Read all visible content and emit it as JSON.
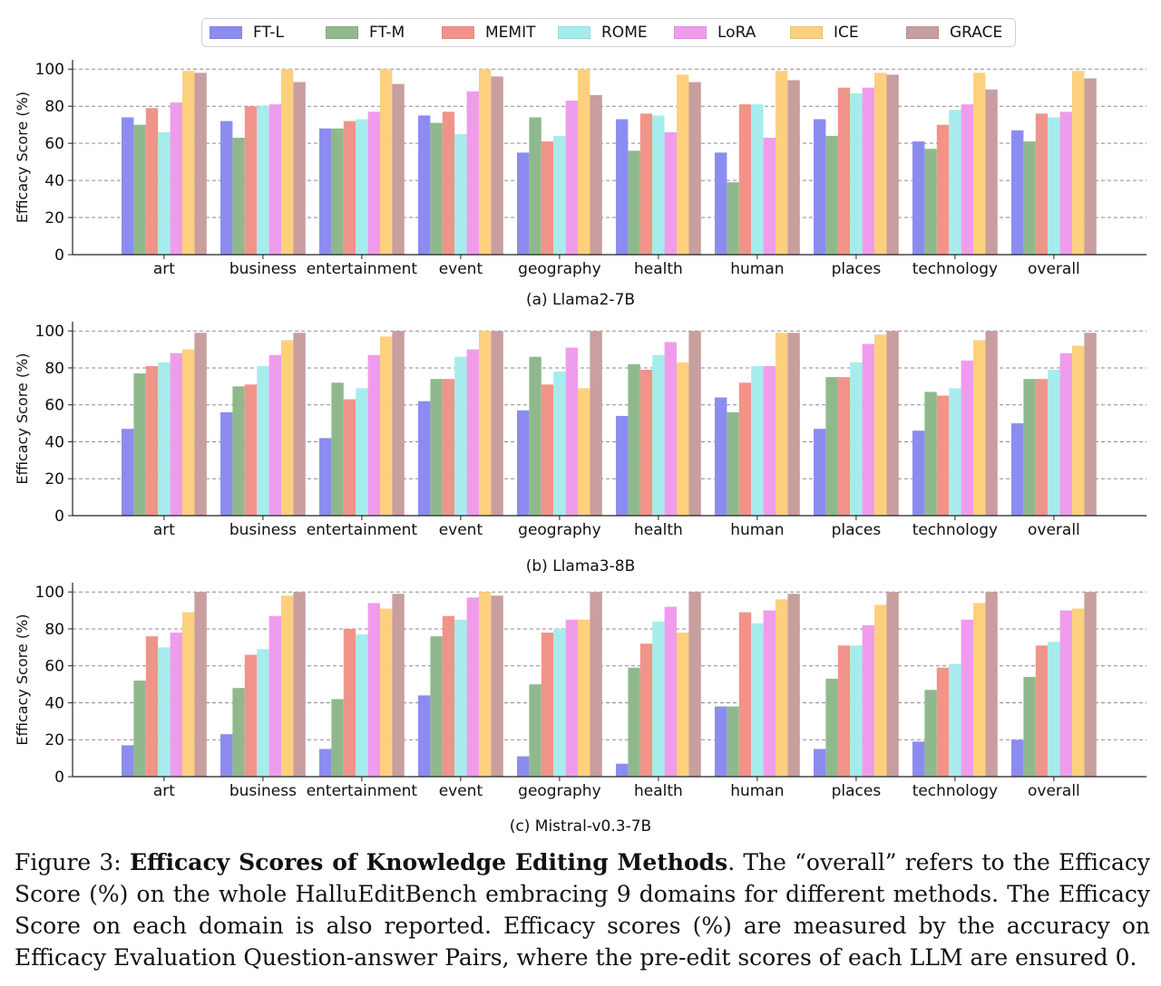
{
  "legend": [
    "FT-L",
    "FT-M",
    "MEMIT",
    "ROME",
    "LoRA",
    "ICE",
    "GRACE"
  ],
  "colors": [
    "#8c8cf0",
    "#8fb98c",
    "#f0948a",
    "#a6ecec",
    "#f09cec",
    "#fdd07e",
    "#c89e9e"
  ],
  "figure_caption": {
    "label": "Figure 3:",
    "title": "Efficacy Scores of Knowledge Editing Methods",
    "body": ". The “overall” refers to the Efficacy Score (%) on the whole HalluEditBench embracing 9 domains for different methods. The Efficacy Score on each domain is also reported. Efficacy scores (%) are measured by the accuracy on Efficacy Evaluation Question-answer Pairs, where the pre-edit scores of each LLM are ensured 0."
  },
  "chart_data": [
    {
      "type": "bar",
      "title": "(a) Llama2-7B",
      "xlabel": "",
      "ylabel": "Efficacy Score (%)",
      "ylim": [
        0,
        105
      ],
      "yticks": [
        0,
        20,
        40,
        60,
        80,
        100
      ],
      "grid": true,
      "categories": [
        "art",
        "business",
        "entertainment",
        "event",
        "geography",
        "health",
        "human",
        "places",
        "technology",
        "overall"
      ],
      "series": [
        {
          "name": "FT-L",
          "values": [
            74,
            72,
            68,
            75,
            55,
            73,
            55,
            73,
            61,
            67
          ]
        },
        {
          "name": "FT-M",
          "values": [
            70,
            63,
            68,
            71,
            74,
            56,
            39,
            64,
            57,
            61
          ]
        },
        {
          "name": "MEMIT",
          "values": [
            79,
            80,
            72,
            77,
            61,
            76,
            81,
            90,
            70,
            76
          ]
        },
        {
          "name": "ROME",
          "values": [
            66,
            80,
            73,
            65,
            64,
            75,
            81,
            87,
            78,
            74
          ]
        },
        {
          "name": "LoRA",
          "values": [
            82,
            81,
            77,
            88,
            83,
            66,
            63,
            90,
            81,
            77
          ]
        },
        {
          "name": "ICE",
          "values": [
            99,
            100,
            100,
            100,
            100,
            97,
            99,
            98,
            98,
            99
          ]
        },
        {
          "name": "GRACE",
          "values": [
            98,
            93,
            92,
            96,
            86,
            93,
            94,
            97,
            89,
            95
          ]
        }
      ]
    },
    {
      "type": "bar",
      "title": "(b) Llama3-8B",
      "xlabel": "",
      "ylabel": "Efficacy Score (%)",
      "ylim": [
        0,
        105
      ],
      "yticks": [
        0,
        20,
        40,
        60,
        80,
        100
      ],
      "grid": true,
      "categories": [
        "art",
        "business",
        "entertainment",
        "event",
        "geography",
        "health",
        "human",
        "places",
        "technology",
        "overall"
      ],
      "series": [
        {
          "name": "FT-L",
          "values": [
            47,
            56,
            42,
            62,
            57,
            54,
            64,
            47,
            46,
            50
          ]
        },
        {
          "name": "FT-M",
          "values": [
            77,
            70,
            72,
            74,
            86,
            82,
            56,
            75,
            67,
            74
          ]
        },
        {
          "name": "MEMIT",
          "values": [
            81,
            71,
            63,
            74,
            71,
            79,
            72,
            75,
            65,
            74
          ]
        },
        {
          "name": "ROME",
          "values": [
            83,
            81,
            69,
            86,
            78,
            87,
            81,
            83,
            69,
            79
          ]
        },
        {
          "name": "LoRA",
          "values": [
            88,
            87,
            87,
            90,
            91,
            94,
            81,
            93,
            84,
            88
          ]
        },
        {
          "name": "ICE",
          "values": [
            90,
            95,
            97,
            100,
            69,
            83,
            99,
            98,
            95,
            92
          ]
        },
        {
          "name": "GRACE",
          "values": [
            99,
            99,
            100,
            100,
            100,
            100,
            99,
            100,
            100,
            99
          ]
        }
      ]
    },
    {
      "type": "bar",
      "title": "(c) Mistral-v0.3-7B",
      "xlabel": "",
      "ylabel": "Efficacy Score (%)",
      "ylim": [
        0,
        105
      ],
      "yticks": [
        0,
        20,
        40,
        60,
        80,
        100
      ],
      "grid": true,
      "categories": [
        "art",
        "business",
        "entertainment",
        "event",
        "geography",
        "health",
        "human",
        "places",
        "technology",
        "overall"
      ],
      "series": [
        {
          "name": "FT-L",
          "values": [
            17,
            23,
            15,
            44,
            11,
            7,
            38,
            15,
            19,
            20
          ]
        },
        {
          "name": "FT-M",
          "values": [
            52,
            48,
            42,
            76,
            50,
            59,
            38,
            53,
            47,
            54
          ]
        },
        {
          "name": "MEMIT",
          "values": [
            76,
            66,
            80,
            87,
            78,
            72,
            89,
            71,
            59,
            71
          ]
        },
        {
          "name": "ROME",
          "values": [
            70,
            69,
            77,
            85,
            80,
            84,
            83,
            71,
            61,
            73
          ]
        },
        {
          "name": "LoRA",
          "values": [
            78,
            87,
            94,
            97,
            85,
            92,
            90,
            82,
            85,
            90
          ]
        },
        {
          "name": "ICE",
          "values": [
            89,
            98,
            91,
            100,
            85,
            78,
            96,
            93,
            94,
            91
          ]
        },
        {
          "name": "GRACE",
          "values": [
            100,
            100,
            99,
            98,
            100,
            100,
            99,
            100,
            100,
            100
          ]
        }
      ]
    }
  ]
}
